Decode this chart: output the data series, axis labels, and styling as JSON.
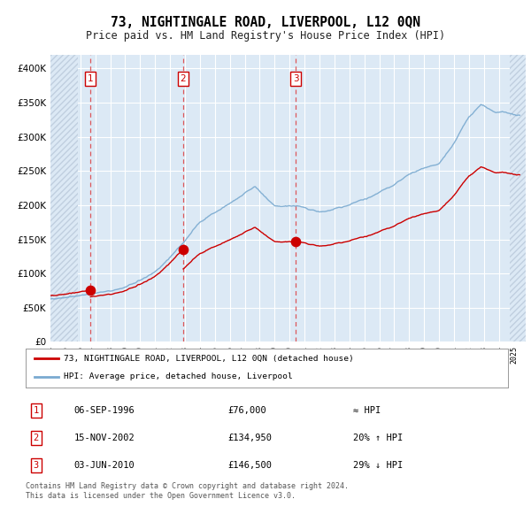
{
  "title": "73, NIGHTINGALE ROAD, LIVERPOOL, L12 0QN",
  "subtitle": "Price paid vs. HM Land Registry's House Price Index (HPI)",
  "hpi_label": "HPI: Average price, detached house, Liverpool",
  "price_label": "73, NIGHTINGALE ROAD, LIVERPOOL, L12 0QN (detached house)",
  "copyright": "Contains HM Land Registry data © Crown copyright and database right 2024.\nThis data is licensed under the Open Government Licence v3.0.",
  "sale_points": [
    {
      "num": 1,
      "date": "06-SEP-1996",
      "price": 76000,
      "year": 1996.68,
      "hpi_rel": "≈ HPI"
    },
    {
      "num": 2,
      "date": "15-NOV-2002",
      "price": 134950,
      "year": 2002.87,
      "hpi_rel": "20% ↑ HPI"
    },
    {
      "num": 3,
      "date": "03-JUN-2010",
      "price": 146500,
      "year": 2010.42,
      "hpi_rel": "29% ↓ HPI"
    }
  ],
  "ylim": [
    0,
    420000
  ],
  "xlim_start": 1994.0,
  "xlim_end": 2025.8,
  "bg_color": "#dce9f5",
  "hatch_color": "#c0cfdf",
  "grid_color": "#ffffff",
  "line_color_red": "#cc0000",
  "line_color_blue": "#7aaad0",
  "dot_color": "#cc0000",
  "sale_box_border": "#cc0000",
  "hatch_left_end": 1995.83,
  "hatch_right_start": 2024.75
}
